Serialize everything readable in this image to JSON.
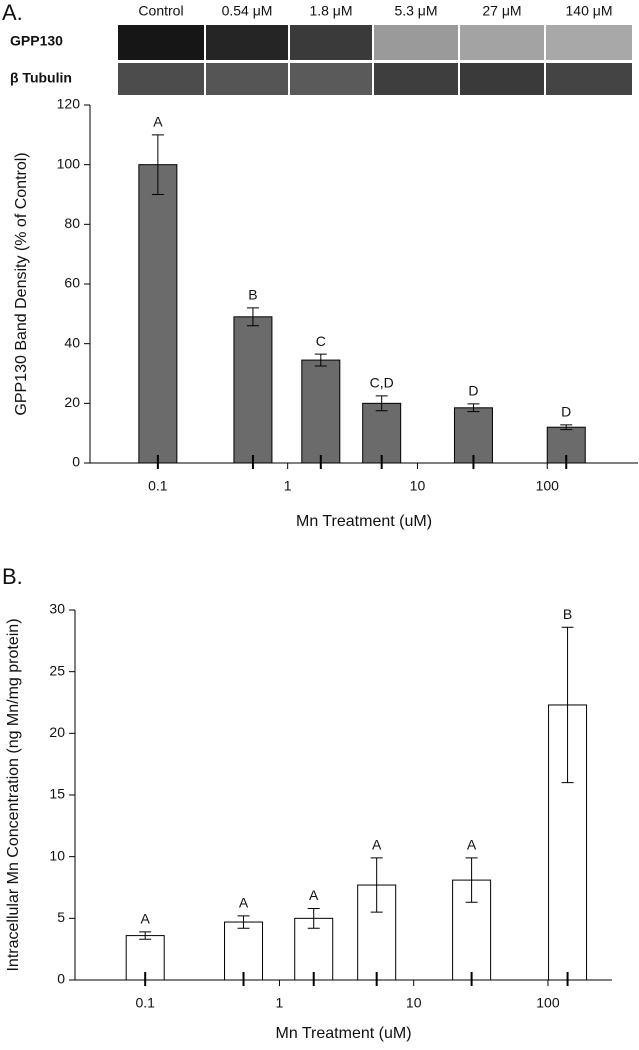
{
  "panel_labels": [
    "A.",
    "B."
  ],
  "blot": {
    "lanes": [
      "Control",
      "0.54 μM",
      "1.8 μM",
      "5.3 μM",
      "27 μM",
      "140 μM"
    ],
    "rows": [
      "GPP130",
      "β Tubulin"
    ]
  },
  "chart_data": [
    {
      "type": "bar",
      "x": [
        0.1,
        0.54,
        1.8,
        5.3,
        27,
        140
      ],
      "values": [
        100,
        49,
        34.5,
        20,
        18.5,
        12
      ],
      "errors": [
        10,
        3,
        2,
        2.5,
        1.3,
        0.8
      ],
      "annotations": [
        "A",
        "B",
        "C",
        "C,D",
        "D",
        "D"
      ],
      "color": "#6b6b6b",
      "x_label": "Mn Treatment (uM)",
      "y_label": "GPP130 Band Density (% of Control)",
      "xscale": "log",
      "xlim": [
        0.03,
        500
      ],
      "xticks": [
        0.1,
        1,
        10,
        100
      ],
      "ylim": [
        0,
        120
      ],
      "yticks": [
        0,
        20,
        40,
        60,
        80,
        100,
        120
      ]
    },
    {
      "type": "bar",
      "x": [
        0.1,
        0.54,
        1.8,
        5.3,
        27,
        140
      ],
      "values": [
        3.6,
        4.7,
        5.0,
        7.7,
        8.1,
        22.3
      ],
      "errors": [
        0.3,
        0.5,
        0.8,
        2.2,
        1.8,
        6.3
      ],
      "annotations": [
        "A",
        "A",
        "A",
        "A",
        "A",
        "B"
      ],
      "color": "#ffffff",
      "x_label": "Mn Treatment (uM)",
      "y_label": "Intracellular Mn Concentration (ng Mn/mg protein)",
      "xscale": "log",
      "xlim": [
        0.03,
        300
      ],
      "xticks": [
        0.1,
        1,
        10,
        100
      ],
      "ylim": [
        0,
        30
      ],
      "yticks": [
        0,
        5,
        10,
        15,
        20,
        25,
        30
      ]
    }
  ]
}
